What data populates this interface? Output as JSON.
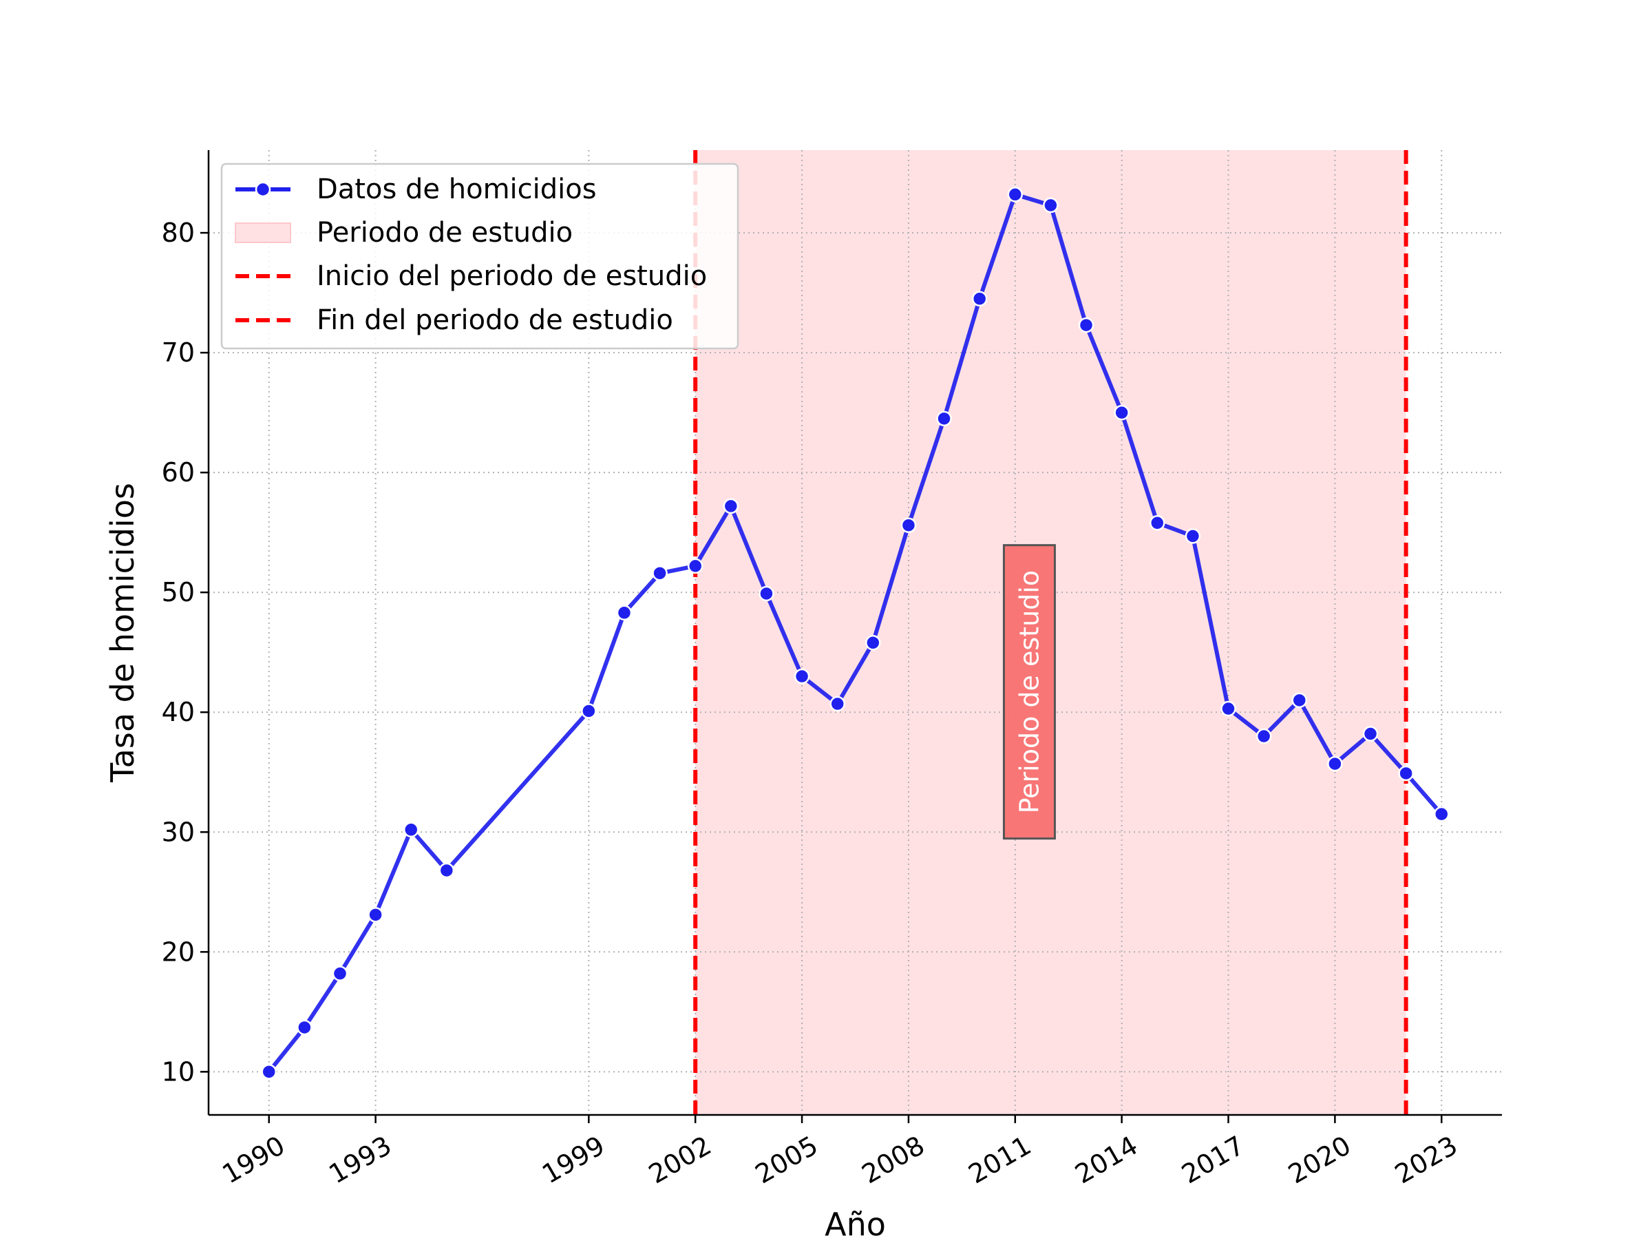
{
  "chart_data": {
    "type": "line",
    "title": "",
    "xlabel": "Año",
    "ylabel": "Tasa de homicidios",
    "xlim": [
      1988.3,
      2024.7
    ],
    "ylim": [
      6.4,
      86.9
    ],
    "x_ticks": [
      1990,
      1993,
      1999,
      2002,
      2005,
      2008,
      2011,
      2014,
      2017,
      2020,
      2023
    ],
    "y_ticks": [
      10,
      20,
      30,
      40,
      50,
      60,
      70,
      80
    ],
    "x_tick_rotation_deg": 30,
    "grid": true,
    "grid_style": "dotted",
    "legend_position": "upper-left",
    "series": [
      {
        "name": "Datos de homicidios",
        "color": "#2020ee",
        "marker": "circle",
        "x": [
          1990,
          1991,
          1992,
          1993,
          1994,
          1995,
          1999,
          2000,
          2001,
          2002,
          2003,
          2004,
          2005,
          2006,
          2007,
          2008,
          2009,
          2010,
          2011,
          2012,
          2013,
          2014,
          2015,
          2016,
          2017,
          2018,
          2019,
          2020,
          2021,
          2022,
          2023
        ],
        "y": [
          10.0,
          13.7,
          18.2,
          23.1,
          30.2,
          26.8,
          40.1,
          48.3,
          51.6,
          52.2,
          57.2,
          49.9,
          43.0,
          40.7,
          45.8,
          55.6,
          64.5,
          74.5,
          83.2,
          82.3,
          72.3,
          65.0,
          55.8,
          54.7,
          40.3,
          38.0,
          41.0,
          35.7,
          38.2,
          34.9,
          31.5
        ]
      }
    ],
    "shaded_region": {
      "label": "Periodo de estudio",
      "x_start": 2002,
      "x_end": 2022,
      "color": "#ffe1e4"
    },
    "vertical_lines": [
      {
        "label": "Inicio del periodo de estudio",
        "x": 2002,
        "color": "#ff0000",
        "style": "dashed"
      },
      {
        "label": "Fin del periodo de estudio",
        "x": 2022,
        "color": "#ff0000",
        "style": "dashed"
      }
    ],
    "annotations": [
      {
        "text": "Periodo de estudio",
        "x": 2011.4,
        "y": 41.7,
        "rotation_deg": -90,
        "box_color": "#f87070"
      }
    ],
    "legend": [
      {
        "label": "Datos de homicidios",
        "kind": "line-marker",
        "color": "#2020ee"
      },
      {
        "label": "Periodo de estudio",
        "kind": "patch",
        "color": "#ffe1e4"
      },
      {
        "label": "Inicio del periodo de estudio",
        "kind": "dashed",
        "color": "#ff0000"
      },
      {
        "label": "Fin del periodo de estudio",
        "kind": "dashed",
        "color": "#ff0000"
      }
    ]
  }
}
